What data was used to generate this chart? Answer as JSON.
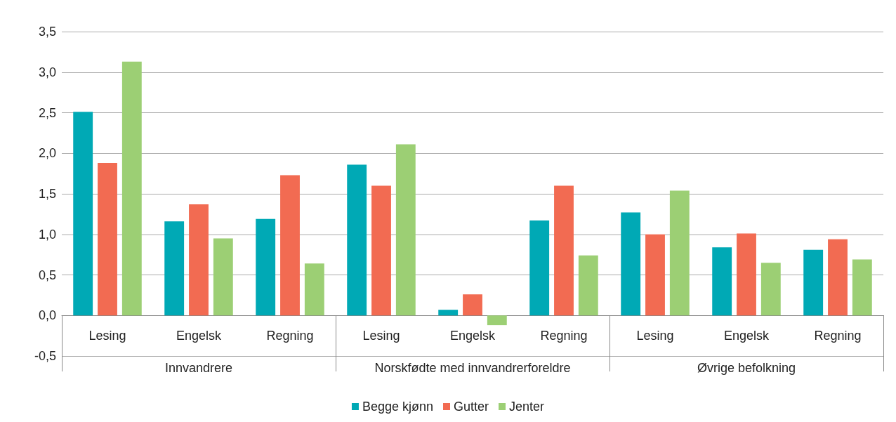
{
  "chart_data": {
    "type": "bar",
    "categories": [
      "Lesing",
      "Engelsk",
      "Regning",
      "Lesing",
      "Engelsk",
      "Regning",
      "Lesing",
      "Engelsk",
      "Regning"
    ],
    "annotations": [
      "Innvandrere",
      "Norskfødte med innvandrerforeldre",
      "Øvrige befolkning"
    ],
    "series": [
      {
        "name": "Begge kjønn",
        "color": "#00a9b5",
        "values": [
          2.51,
          1.16,
          1.19,
          1.86,
          0.07,
          1.17,
          1.27,
          0.84,
          0.81
        ]
      },
      {
        "name": "Gutter",
        "color": "#f26b52",
        "values": [
          1.88,
          1.37,
          1.73,
          1.6,
          0.26,
          1.6,
          1.0,
          1.01,
          0.94
        ]
      },
      {
        "name": "Jenter",
        "color": "#9ccf74",
        "values": [
          3.13,
          0.95,
          0.64,
          2.11,
          -0.12,
          0.74,
          1.54,
          0.65,
          0.69
        ]
      }
    ],
    "ylim": [
      -0.5,
      3.5
    ],
    "yticks": [
      {
        "value": -0.5,
        "label": "-0,5"
      },
      {
        "value": 0,
        "label": "0,0"
      },
      {
        "value": 0.5,
        "label": "0,5"
      },
      {
        "value": 1,
        "label": "1,0"
      },
      {
        "value": 1.5,
        "label": "1,5"
      },
      {
        "value": 2,
        "label": "2,0"
      },
      {
        "value": 2.5,
        "label": "2,5"
      },
      {
        "value": 3,
        "label": "3,0"
      },
      {
        "value": 3.5,
        "label": "3,5"
      }
    ],
    "grid": "y",
    "legend": "bottom"
  }
}
